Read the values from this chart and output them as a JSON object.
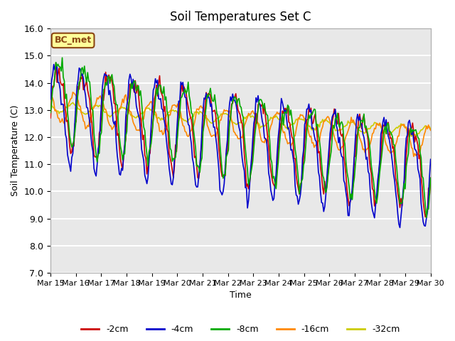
{
  "title": "Soil Temperatures Set C",
  "xlabel": "Time",
  "ylabel": "Soil Temperature (C)",
  "ylim": [
    7.0,
    16.0
  ],
  "yticks": [
    7.0,
    8.0,
    9.0,
    10.0,
    11.0,
    12.0,
    13.0,
    14.0,
    15.0,
    16.0
  ],
  "series_colors": {
    "-2cm": "#cc0000",
    "-4cm": "#0000cc",
    "-8cm": "#00aa00",
    "-16cm": "#ff8800",
    "-32cm": "#cccc00"
  },
  "legend_labels": [
    "-2cm",
    "-4cm",
    "-8cm",
    "-16cm",
    "-32cm"
  ],
  "annotation_label": "BC_met",
  "annotation_bg": "#ffff99",
  "annotation_border": "#8B4513",
  "background_color": "#e8e8e8",
  "plot_bg": "#e8e8e8",
  "n_points": 360,
  "x_start": 15,
  "x_end": 30,
  "xtick_positions": [
    15,
    16,
    17,
    18,
    19,
    20,
    21,
    22,
    23,
    24,
    25,
    26,
    27,
    28,
    29,
    30
  ],
  "xtick_labels": [
    "Mar 15",
    "Mar 16",
    "Mar 17",
    "Mar 18",
    "Mar 19",
    "Mar 20",
    "Mar 21",
    "Mar 22",
    "Mar 23",
    "Mar 24",
    "Mar 25",
    "Mar 26",
    "Mar 27",
    "Mar 28",
    "Mar 29",
    "Mar 30"
  ]
}
